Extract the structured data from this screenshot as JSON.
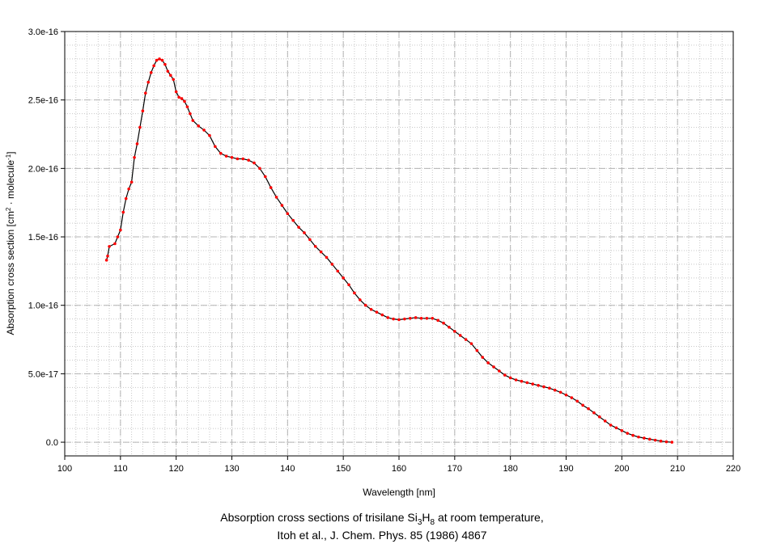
{
  "chart_data": {
    "type": "line",
    "xlabel": "Wavelength [nm]",
    "ylabel": {
      "main": "Absorption cross section [cm",
      "sup1": "2",
      "mid": " · molecule",
      "sup2": "-1",
      "end": "]"
    },
    "xlim": [
      100,
      220
    ],
    "ylim": [
      -1e-17,
      3e-16
    ],
    "x_ticks": [
      100,
      110,
      120,
      130,
      140,
      150,
      160,
      170,
      180,
      190,
      200,
      210,
      220
    ],
    "x_tick_labels": [
      "100",
      "110",
      "120",
      "130",
      "140",
      "150",
      "160",
      "170",
      "180",
      "190",
      "200",
      "210",
      "220"
    ],
    "y_ticks": [
      0,
      5e-17,
      1e-16,
      1.5e-16,
      2e-16,
      2.5e-16,
      3e-16
    ],
    "y_tick_labels": [
      "0.0",
      "5.0e-17",
      "1.0e-16",
      "1.5e-16",
      "2.0e-16",
      "2.5e-16",
      "3.0e-16"
    ],
    "grid": true,
    "line_color": "#000000",
    "marker_color": "#ff0000",
    "series": [
      {
        "x": [
          107.5,
          107.7,
          108.0,
          109.0,
          109.5,
          110.0,
          110.5,
          111.0,
          111.5,
          112.0,
          112.5,
          113.0,
          113.5,
          114.0,
          114.5,
          115.0,
          115.5,
          116.0,
          116.5,
          117.0,
          117.5,
          118.0,
          118.5,
          119.0,
          119.5,
          120.0,
          120.5,
          121.0,
          121.5,
          122.0,
          122.5,
          123.0,
          124.0,
          125.0,
          126.0,
          127.0,
          128.0,
          129.0,
          130.0,
          131.0,
          132.0,
          133.0,
          134.0,
          135.0,
          136.0,
          137.0,
          138.0,
          139.0,
          140.0,
          141.0,
          142.0,
          143.0,
          144.0,
          145.0,
          146.0,
          147.0,
          148.0,
          149.0,
          150.0,
          151.0,
          152.0,
          153.0,
          154.0,
          155.0,
          156.0,
          157.0,
          158.0,
          159.0,
          160.0,
          161.0,
          162.0,
          163.0,
          164.0,
          165.0,
          166.0,
          167.0,
          168.0,
          169.0,
          170.0,
          171.0,
          172.0,
          173.0,
          174.0,
          175.0,
          176.0,
          177.0,
          178.0,
          179.0,
          180.0,
          181.0,
          182.0,
          183.0,
          184.0,
          185.0,
          186.0,
          187.0,
          188.0,
          189.0,
          190.0,
          191.0,
          192.0,
          193.0,
          194.0,
          195.0,
          196.0,
          197.0,
          198.0,
          199.0,
          200.0,
          201.0,
          202.0,
          203.0,
          204.0,
          205.0,
          206.0,
          207.0,
          208.0,
          209.0
        ],
        "y": [
          1.33e-16,
          1.36e-16,
          1.43e-16,
          1.45e-16,
          1.5e-16,
          1.55e-16,
          1.68e-16,
          1.78e-16,
          1.85e-16,
          1.9e-16,
          2.08e-16,
          2.18e-16,
          2.3e-16,
          2.42e-16,
          2.55e-16,
          2.63e-16,
          2.7e-16,
          2.75e-16,
          2.79e-16,
          2.8e-16,
          2.79e-16,
          2.76e-16,
          2.71e-16,
          2.68e-16,
          2.65e-16,
          2.56e-16,
          2.52e-16,
          2.51e-16,
          2.49e-16,
          2.45e-16,
          2.4e-16,
          2.35e-16,
          2.31e-16,
          2.28e-16,
          2.24e-16,
          2.16e-16,
          2.11e-16,
          2.09e-16,
          2.08e-16,
          2.07e-16,
          2.07e-16,
          2.06e-16,
          2.04e-16,
          2e-16,
          1.94e-16,
          1.86e-16,
          1.79e-16,
          1.73e-16,
          1.67e-16,
          1.62e-16,
          1.57e-16,
          1.53e-16,
          1.48e-16,
          1.43e-16,
          1.39e-16,
          1.35e-16,
          1.3e-16,
          1.25e-16,
          1.2e-16,
          1.15e-16,
          1.09e-16,
          1.04e-16,
          1e-16,
          9.7e-17,
          9.5e-17,
          9.3e-17,
          9.1e-17,
          9e-17,
          8.95e-17,
          9e-17,
          9.05e-17,
          9.1e-17,
          9.05e-17,
          9.05e-17,
          9.05e-17,
          8.9e-17,
          8.7e-17,
          8.4e-17,
          8.1e-17,
          7.8e-17,
          7.5e-17,
          7.2e-17,
          6.7e-17,
          6.2e-17,
          5.8e-17,
          5.5e-17,
          5.2e-17,
          4.9e-17,
          4.7e-17,
          4.55e-17,
          4.45e-17,
          4.35e-17,
          4.25e-17,
          4.15e-17,
          4.05e-17,
          3.95e-17,
          3.8e-17,
          3.65e-17,
          3.45e-17,
          3.25e-17,
          3e-17,
          2.7e-17,
          2.45e-17,
          2.15e-17,
          1.85e-17,
          1.55e-17,
          1.25e-17,
          1.05e-17,
          8.5e-18,
          6.5e-18,
          5e-18,
          3.8e-18,
          3e-18,
          2.2e-18,
          1.5e-18,
          8e-19,
          3e-19,
          0.0
        ]
      }
    ]
  },
  "caption": {
    "line1_pre": "Absorption cross sections of trisilane Si",
    "line1_sub1": "3",
    "line1_mid": "H",
    "line1_sub2": "8",
    "line1_post": " at room temperature,",
    "line2": "Itoh et al., J. Chem. Phys. 85 (1986) 4867"
  }
}
